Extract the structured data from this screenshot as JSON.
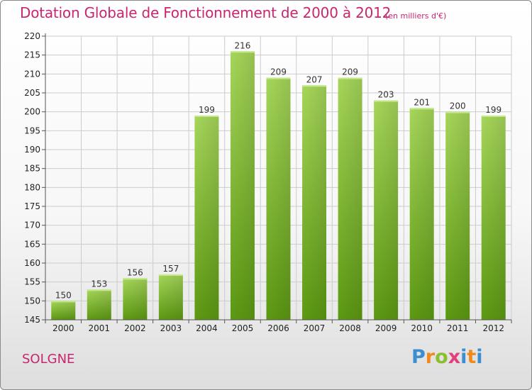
{
  "title": "Dotation Globale de Fonctionnement de 2000 à 2012",
  "subtitle": "(en milliers d'€)",
  "commune": "SOLGNE",
  "logo": "Proxiti",
  "colors": {
    "title": "#c8266f",
    "bar_light": "#9fd051",
    "bar_dark": "#5d9a12",
    "grid": "#cccccc"
  },
  "chart_data": {
    "type": "bar",
    "title": "Dotation Globale de Fonctionnement de 2000 à 2012",
    "subtitle": "(en milliers d'€)",
    "xlabel": "",
    "ylabel": "",
    "categories": [
      "2000",
      "2001",
      "2002",
      "2003",
      "2004",
      "2005",
      "2006",
      "2007",
      "2008",
      "2009",
      "2010",
      "2011",
      "2012"
    ],
    "values": [
      150,
      153,
      156,
      157,
      199,
      216,
      209,
      207,
      209,
      203,
      201,
      200,
      199
    ],
    "ylim": [
      145,
      220
    ],
    "yticks": [
      145,
      150,
      155,
      160,
      165,
      170,
      175,
      180,
      185,
      190,
      195,
      200,
      205,
      210,
      215,
      220
    ],
    "grid": true,
    "legend": "none"
  }
}
